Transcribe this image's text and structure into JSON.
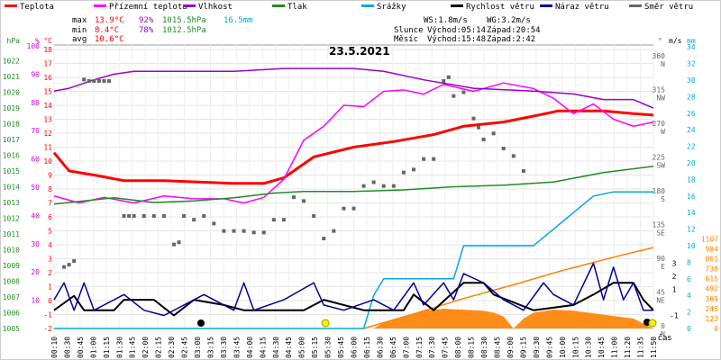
{
  "legend": [
    {
      "label": "Teplota",
      "color": "#ff0000"
    },
    {
      "label": "Přízemní teplota",
      "color": "#ff00ff"
    },
    {
      "label": "Vlhkost",
      "color": "#9900cc"
    },
    {
      "label": "Tlak",
      "color": "#228b22"
    },
    {
      "label": "Srážky",
      "color": "#00aadd"
    },
    {
      "label": "Rychlost větru",
      "color": "#000000"
    },
    {
      "label": "Náraz větru",
      "color": "#000099"
    },
    {
      "label": "Směr větru",
      "color": "#666666"
    }
  ],
  "stats": {
    "max": {
      "label": "max",
      "temp": "13.9°C",
      "hum": "92%",
      "press": "1015.5hPa",
      "rain": "16.5mm"
    },
    "min": {
      "label": "min",
      "temp": "8.4°C",
      "hum": "78%",
      "press": "1012.5hPa"
    },
    "avg": {
      "label": "avg",
      "temp": "10.6°C"
    }
  },
  "info": {
    "ws": "WS:1.8m/s",
    "wg": "WG:3.2m/s",
    "sun_label": "Slunce",
    "sunrise": "Východ:05:14",
    "sunset": "Západ:20:54",
    "moon_label": "Měsíc",
    "moonrise": "Východ:15:48",
    "moonset": "Západ:2:42"
  },
  "chart_data": {
    "type": "line",
    "title": "23.5.2021",
    "x_label": "čas",
    "x": [
      "00:10",
      "00:30",
      "00:45",
      "01:00",
      "01:15",
      "01:30",
      "01:45",
      "02:00",
      "02:15",
      "02:30",
      "02:45",
      "03:00",
      "03:15",
      "03:30",
      "03:45",
      "04:00",
      "04:15",
      "04:30",
      "04:45",
      "05:00",
      "05:15",
      "05:30",
      "05:45",
      "06:00",
      "06:15",
      "06:30",
      "06:45",
      "07:00",
      "07:15",
      "07:30",
      "07:45",
      "08:00",
      "08:15",
      "08:30",
      "08:45",
      "09:00",
      "09:15",
      "09:30",
      "09:45",
      "10:00",
      "10:15",
      "10:30",
      "10:45",
      "11:00",
      "11:20",
      "11:35",
      "11:50"
    ],
    "axes": {
      "pressure": {
        "unit": "hPa",
        "ticks": [
          "1005",
          "1006",
          "1007",
          "1008",
          "1009",
          "1010",
          "1011",
          "1012",
          "1013",
          "1014",
          "1015",
          "1016",
          "1017",
          "1018",
          "1019",
          "1020",
          "1021",
          "1022"
        ]
      },
      "humidity": {
        "unit": "%",
        "ticks": [
          "10",
          "20",
          "30",
          "40",
          "50",
          "60",
          "70",
          "80",
          "90",
          "100"
        ]
      },
      "temperature": {
        "unit": "°C",
        "ticks": [
          "-2",
          "-1",
          "0",
          "1",
          "2",
          "3",
          "4",
          "5",
          "6",
          "7",
          "8",
          "9",
          "10",
          "11",
          "12",
          "13",
          "14",
          "15",
          "16",
          "17",
          "18"
        ]
      },
      "direction": {
        "unit": "°",
        "ticks": [
          {
            "deg": "0",
            "dir": "N"
          },
          {
            "deg": "45",
            "dir": "NE"
          },
          {
            "deg": "90",
            "dir": "E"
          },
          {
            "deg": "135",
            "dir": "SE"
          },
          {
            "deg": "180",
            "dir": "S"
          },
          {
            "deg": "225",
            "dir": "SW"
          },
          {
            "deg": "270",
            "dir": "W"
          },
          {
            "deg": "315",
            "dir": "NW"
          },
          {
            "deg": "360",
            "dir": "N"
          }
        ]
      },
      "wind": {
        "unit": "m/s",
        "ticks": [
          "-1",
          "1",
          "2",
          "3"
        ]
      },
      "rain": {
        "unit": "mm",
        "ticks": [
          "0",
          "2",
          "4",
          "6",
          "8",
          "10",
          "12",
          "14",
          "16",
          "18",
          "20",
          "22",
          "24",
          "26",
          "28",
          "30",
          "32",
          "34"
        ]
      },
      "solar": {
        "ticks": [
          "0",
          "123",
          "246",
          "369",
          "492",
          "615",
          "738",
          "861",
          "984",
          "1107"
        ]
      }
    },
    "series": [
      {
        "name": "Teplota",
        "color": "#ff0000",
        "axis": "temperature",
        "points": [
          [
            0,
            10.6
          ],
          [
            3,
            9.3
          ],
          [
            8,
            9.0
          ],
          [
            14,
            8.6
          ],
          [
            16,
            8.6
          ],
          [
            22,
            8.6
          ],
          [
            36,
            8.4
          ],
          [
            42,
            8.4
          ],
          [
            46,
            8.8
          ],
          [
            52,
            10.3
          ],
          [
            60,
            11.0
          ],
          [
            68,
            11.4
          ],
          [
            76,
            11.9
          ],
          [
            82,
            12.5
          ],
          [
            90,
            12.8
          ],
          [
            97,
            13.3
          ],
          [
            101,
            13.6
          ],
          [
            106,
            13.6
          ],
          [
            110,
            13.6
          ],
          [
            116,
            13.4
          ],
          [
            120,
            13.3
          ]
        ]
      },
      {
        "name": "Přízemní teplota",
        "color": "#ff00ff",
        "axis": "temperature",
        "points": [
          [
            0,
            7.5
          ],
          [
            5,
            7.0
          ],
          [
            10,
            7.4
          ],
          [
            16,
            7.0
          ],
          [
            22,
            7.5
          ],
          [
            28,
            7.3
          ],
          [
            34,
            7.3
          ],
          [
            38,
            7.0
          ],
          [
            42,
            7.4
          ],
          [
            46,
            8.7
          ],
          [
            50,
            11.5
          ],
          [
            54,
            12.5
          ],
          [
            58,
            14.0
          ],
          [
            62,
            13.9
          ],
          [
            66,
            15.0
          ],
          [
            70,
            15.1
          ],
          [
            74,
            14.8
          ],
          [
            78,
            15.5
          ],
          [
            84,
            15.0
          ],
          [
            90,
            15.6
          ],
          [
            96,
            15.2
          ],
          [
            100,
            14.5
          ],
          [
            104,
            13.4
          ],
          [
            108,
            14.1
          ],
          [
            112,
            13.0
          ],
          [
            116,
            12.5
          ],
          [
            120,
            12.8
          ]
        ]
      },
      {
        "name": "Vlhkost",
        "color": "#9900cc",
        "axis": "humidity",
        "points": [
          [
            0,
            84
          ],
          [
            3,
            85
          ],
          [
            8,
            88
          ],
          [
            12,
            90
          ],
          [
            16,
            91
          ],
          [
            24,
            91
          ],
          [
            36,
            91
          ],
          [
            46,
            92
          ],
          [
            60,
            92
          ],
          [
            66,
            91
          ],
          [
            74,
            88
          ],
          [
            84,
            85
          ],
          [
            96,
            84
          ],
          [
            104,
            83
          ],
          [
            110,
            81
          ],
          [
            116,
            81
          ],
          [
            120,
            78
          ]
        ]
      },
      {
        "name": "Tlak",
        "color": "#228b22",
        "axis": "pressure",
        "points": [
          [
            0,
            1012.9
          ],
          [
            6,
            1013.1
          ],
          [
            12,
            1013.3
          ],
          [
            20,
            1013.0
          ],
          [
            28,
            1013.1
          ],
          [
            36,
            1013.3
          ],
          [
            44,
            1013.6
          ],
          [
            50,
            1013.7
          ],
          [
            60,
            1013.7
          ],
          [
            70,
            1013.8
          ],
          [
            80,
            1014.0
          ],
          [
            90,
            1014.1
          ],
          [
            100,
            1014.3
          ],
          [
            110,
            1014.9
          ],
          [
            120,
            1015.3
          ]
        ]
      },
      {
        "name": "Srážky",
        "color": "#00aadd",
        "axis": "rain",
        "points": [
          [
            0,
            0
          ],
          [
            62,
            0
          ],
          [
            64,
            4
          ],
          [
            66,
            6
          ],
          [
            70,
            6
          ],
          [
            80,
            6
          ],
          [
            82,
            10
          ],
          [
            90,
            10
          ],
          [
            96,
            10
          ],
          [
            100,
            12
          ],
          [
            104,
            14
          ],
          [
            108,
            16
          ],
          [
            112,
            16.5
          ],
          [
            120,
            16.5
          ]
        ]
      },
      {
        "name": "Rychlost větru",
        "color": "#000000",
        "axis": "wind",
        "points": [
          [
            0,
            -0.6
          ],
          [
            4,
            0.5
          ],
          [
            6,
            -0.6
          ],
          [
            12,
            -0.6
          ],
          [
            14,
            0.2
          ],
          [
            20,
            0.2
          ],
          [
            24,
            -1.0
          ],
          [
            28,
            0.2
          ],
          [
            34,
            -0.2
          ],
          [
            38,
            -0.6
          ],
          [
            50,
            -0.6
          ],
          [
            54,
            0.2
          ],
          [
            62,
            -0.6
          ],
          [
            70,
            -0.6
          ],
          [
            72,
            0.6
          ],
          [
            76,
            -0.6
          ],
          [
            82,
            1.5
          ],
          [
            86,
            1.5
          ],
          [
            88,
            0.6
          ],
          [
            96,
            -0.6
          ],
          [
            104,
            -0.2
          ],
          [
            108,
            0.6
          ],
          [
            112,
            1.5
          ],
          [
            116,
            1.5
          ],
          [
            118,
            0.2
          ],
          [
            120,
            -0.6
          ]
        ]
      },
      {
        "name": "Náraz větru",
        "color": "#000099",
        "axis": "wind",
        "points": [
          [
            0,
            0.2
          ],
          [
            2,
            1.5
          ],
          [
            4,
            -0.6
          ],
          [
            6,
            1.5
          ],
          [
            8,
            -0.6
          ],
          [
            14,
            0.6
          ],
          [
            18,
            -0.6
          ],
          [
            22,
            -1.0
          ],
          [
            30,
            0.6
          ],
          [
            36,
            -0.6
          ],
          [
            38,
            1.5
          ],
          [
            40,
            -0.6
          ],
          [
            46,
            0.2
          ],
          [
            52,
            1.5
          ],
          [
            54,
            -0.2
          ],
          [
            58,
            -0.6
          ],
          [
            64,
            0.2
          ],
          [
            68,
            -0.6
          ],
          [
            72,
            1.5
          ],
          [
            74,
            -0.2
          ],
          [
            78,
            1.5
          ],
          [
            80,
            0.2
          ],
          [
            82,
            2.2
          ],
          [
            86,
            1.5
          ],
          [
            90,
            0.2
          ],
          [
            94,
            -0.6
          ],
          [
            98,
            1.5
          ],
          [
            100,
            0.6
          ],
          [
            104,
            -0.2
          ],
          [
            108,
            3.0
          ],
          [
            110,
            0.2
          ],
          [
            112,
            2.7
          ],
          [
            114,
            0.2
          ],
          [
            116,
            1.5
          ],
          [
            118,
            -0.6
          ],
          [
            120,
            -0.6
          ]
        ]
      },
      {
        "name": "Směr větru",
        "color": "#666666",
        "axis": "direction",
        "points": [
          [
            2,
            82
          ],
          [
            3,
            85
          ],
          [
            4,
            90
          ],
          [
            6,
            332
          ],
          [
            7,
            330
          ],
          [
            8,
            330
          ],
          [
            9,
            330
          ],
          [
            10,
            330
          ],
          [
            11,
            330
          ],
          [
            14,
            150
          ],
          [
            15,
            150
          ],
          [
            16,
            150
          ],
          [
            18,
            150
          ],
          [
            20,
            150
          ],
          [
            22,
            150
          ],
          [
            24,
            112
          ],
          [
            25,
            115
          ],
          [
            26,
            150
          ],
          [
            28,
            145
          ],
          [
            30,
            150
          ],
          [
            32,
            140
          ],
          [
            34,
            130
          ],
          [
            36,
            130
          ],
          [
            38,
            130
          ],
          [
            40,
            128
          ],
          [
            42,
            128
          ],
          [
            44,
            145
          ],
          [
            46,
            145
          ],
          [
            48,
            175
          ],
          [
            50,
            170
          ],
          [
            52,
            150
          ],
          [
            54,
            120
          ],
          [
            56,
            130
          ],
          [
            58,
            160
          ],
          [
            60,
            160
          ],
          [
            62,
            190
          ],
          [
            64,
            195
          ],
          [
            66,
            190
          ],
          [
            68,
            190
          ],
          [
            70,
            208
          ],
          [
            72,
            212
          ],
          [
            74,
            226
          ],
          [
            76,
            226
          ],
          [
            78,
            330
          ],
          [
            79,
            335
          ],
          [
            80,
            310
          ],
          [
            82,
            315
          ],
          [
            84,
            280
          ],
          [
            85,
            268
          ],
          [
            86,
            252
          ],
          [
            88,
            260
          ],
          [
            90,
            240
          ],
          [
            92,
            230
          ],
          [
            94,
            210
          ]
        ]
      }
    ],
    "solar_radiation": {
      "color": "#ff8000",
      "points": [
        [
          0,
          0
        ],
        [
          64,
          0
        ],
        [
          66,
          30
        ],
        [
          70,
          60
        ],
        [
          74,
          90
        ],
        [
          78,
          100
        ],
        [
          82,
          95
        ],
        [
          86,
          90
        ],
        [
          88,
          80
        ],
        [
          90,
          60
        ],
        [
          92,
          0
        ],
        [
          94,
          50
        ],
        [
          96,
          80
        ],
        [
          100,
          95
        ],
        [
          104,
          90
        ],
        [
          110,
          70
        ],
        [
          116,
          50
        ],
        [
          120,
          0
        ]
      ]
    },
    "solar_line": {
      "color": "#ff8000",
      "points": [
        [
          62,
          0
        ],
        [
          72,
          180
        ],
        [
          82,
          370
        ],
        [
          92,
          540
        ],
        [
          102,
          720
        ],
        [
          112,
          880
        ],
        [
          120,
          1000
        ]
      ]
    }
  }
}
